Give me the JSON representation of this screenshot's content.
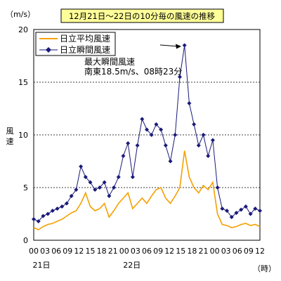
{
  "chart_data": {
    "type": "line",
    "title": "12月21日～22日の10分毎の風速の推移",
    "ylabel": "風速",
    "yunit": "（m/s）",
    "xunit": "（時）",
    "ylim": [
      0,
      20
    ],
    "yticks": [
      0,
      5,
      10,
      15,
      20
    ],
    "xlim": [
      0,
      60
    ],
    "xticks": [
      {
        "hour": 0,
        "label": "00"
      },
      {
        "hour": 3,
        "label": "03"
      },
      {
        "hour": 6,
        "label": "06"
      },
      {
        "hour": 9,
        "label": "09"
      },
      {
        "hour": 12,
        "label": "12"
      },
      {
        "hour": 15,
        "label": "15"
      },
      {
        "hour": 18,
        "label": "18"
      },
      {
        "hour": 21,
        "label": "21"
      },
      {
        "hour": 24,
        "label": "00"
      },
      {
        "hour": 27,
        "label": "03"
      },
      {
        "hour": 30,
        "label": "06"
      },
      {
        "hour": 33,
        "label": "09"
      },
      {
        "hour": 36,
        "label": "12"
      },
      {
        "hour": 39,
        "label": "15"
      },
      {
        "hour": 42,
        "label": "18"
      },
      {
        "hour": 45,
        "label": "21"
      },
      {
        "hour": 48,
        "label": "00"
      },
      {
        "hour": 51,
        "label": "03"
      },
      {
        "hour": 54,
        "label": "06"
      },
      {
        "hour": 57,
        "label": "09"
      },
      {
        "hour": 60,
        "label": "12"
      }
    ],
    "date_labels": [
      {
        "hour": 0,
        "label": "21日"
      },
      {
        "hour": 24,
        "label": "22日"
      }
    ],
    "grid": "horizontal dashed at 5, 10, 15",
    "legend_position": "top-left",
    "annotation": {
      "line1": "最大瞬間風速",
      "line2": "南東18.5m/s、08時23分",
      "max_value": 18.5,
      "max_hour": 32.4
    },
    "series": [
      {
        "name": "日立平均風速",
        "color": "#f5a000",
        "marker": "none",
        "values": [
          [
            0,
            1.2
          ],
          [
            1,
            1.0
          ],
          [
            2,
            1.3
          ],
          [
            3,
            1.5
          ],
          [
            4,
            1.6
          ],
          [
            5,
            1.8
          ],
          [
            6,
            2.0
          ],
          [
            7,
            2.3
          ],
          [
            8,
            2.6
          ],
          [
            9,
            2.8
          ],
          [
            10,
            3.5
          ],
          [
            11,
            4.5
          ],
          [
            12,
            3.2
          ],
          [
            13,
            2.8
          ],
          [
            14,
            3.0
          ],
          [
            15,
            3.5
          ],
          [
            16,
            2.2
          ],
          [
            17,
            2.8
          ],
          [
            18,
            3.5
          ],
          [
            19,
            4.0
          ],
          [
            20,
            4.5
          ],
          [
            21,
            3.0
          ],
          [
            22,
            3.5
          ],
          [
            23,
            4.0
          ],
          [
            24,
            3.5
          ],
          [
            25,
            4.2
          ],
          [
            26,
            4.8
          ],
          [
            27,
            5.0
          ],
          [
            28,
            4.0
          ],
          [
            29,
            3.5
          ],
          [
            30,
            4.2
          ],
          [
            31,
            5.0
          ],
          [
            32,
            8.5
          ],
          [
            33,
            6.0
          ],
          [
            34,
            5.0
          ],
          [
            35,
            4.5
          ],
          [
            36,
            5.2
          ],
          [
            37,
            4.8
          ],
          [
            38,
            5.5
          ],
          [
            39,
            2.5
          ],
          [
            40,
            1.5
          ],
          [
            41,
            1.4
          ],
          [
            42,
            1.2
          ],
          [
            43,
            1.3
          ],
          [
            44,
            1.5
          ],
          [
            45,
            1.6
          ],
          [
            46,
            1.4
          ],
          [
            47,
            1.5
          ],
          [
            48,
            1.3
          ]
        ]
      },
      {
        "name": "日立瞬間風速",
        "color": "#1a1a7a",
        "marker": "diamond",
        "values": [
          [
            0,
            2.0
          ],
          [
            1,
            1.8
          ],
          [
            2,
            2.3
          ],
          [
            3,
            2.5
          ],
          [
            4,
            2.8
          ],
          [
            5,
            3.0
          ],
          [
            6,
            3.2
          ],
          [
            7,
            3.5
          ],
          [
            8,
            4.2
          ],
          [
            9,
            4.8
          ],
          [
            10,
            7.0
          ],
          [
            11,
            6.0
          ],
          [
            12,
            5.5
          ],
          [
            13,
            4.8
          ],
          [
            14,
            5.0
          ],
          [
            15,
            5.5
          ],
          [
            16,
            4.2
          ],
          [
            17,
            5.0
          ],
          [
            18,
            6.0
          ],
          [
            19,
            8.0
          ],
          [
            20,
            9.2
          ],
          [
            21,
            6.0
          ],
          [
            22,
            9.0
          ],
          [
            23,
            11.5
          ],
          [
            24,
            10.5
          ],
          [
            25,
            10.0
          ],
          [
            26,
            11.0
          ],
          [
            27,
            10.5
          ],
          [
            28,
            9.0
          ],
          [
            29,
            7.5
          ],
          [
            30,
            10.0
          ],
          [
            31,
            15.5
          ],
          [
            32,
            18.5
          ],
          [
            33,
            13.0
          ],
          [
            34,
            11.0
          ],
          [
            35,
            9.0
          ],
          [
            36,
            10.0
          ],
          [
            37,
            8.0
          ],
          [
            38,
            9.5
          ],
          [
            39,
            5.0
          ],
          [
            40,
            3.0
          ],
          [
            41,
            2.8
          ],
          [
            42,
            2.2
          ],
          [
            43,
            2.6
          ],
          [
            44,
            2.9
          ],
          [
            45,
            3.2
          ],
          [
            46,
            2.5
          ],
          [
            47,
            3.0
          ],
          [
            48,
            2.8
          ]
        ]
      }
    ]
  }
}
